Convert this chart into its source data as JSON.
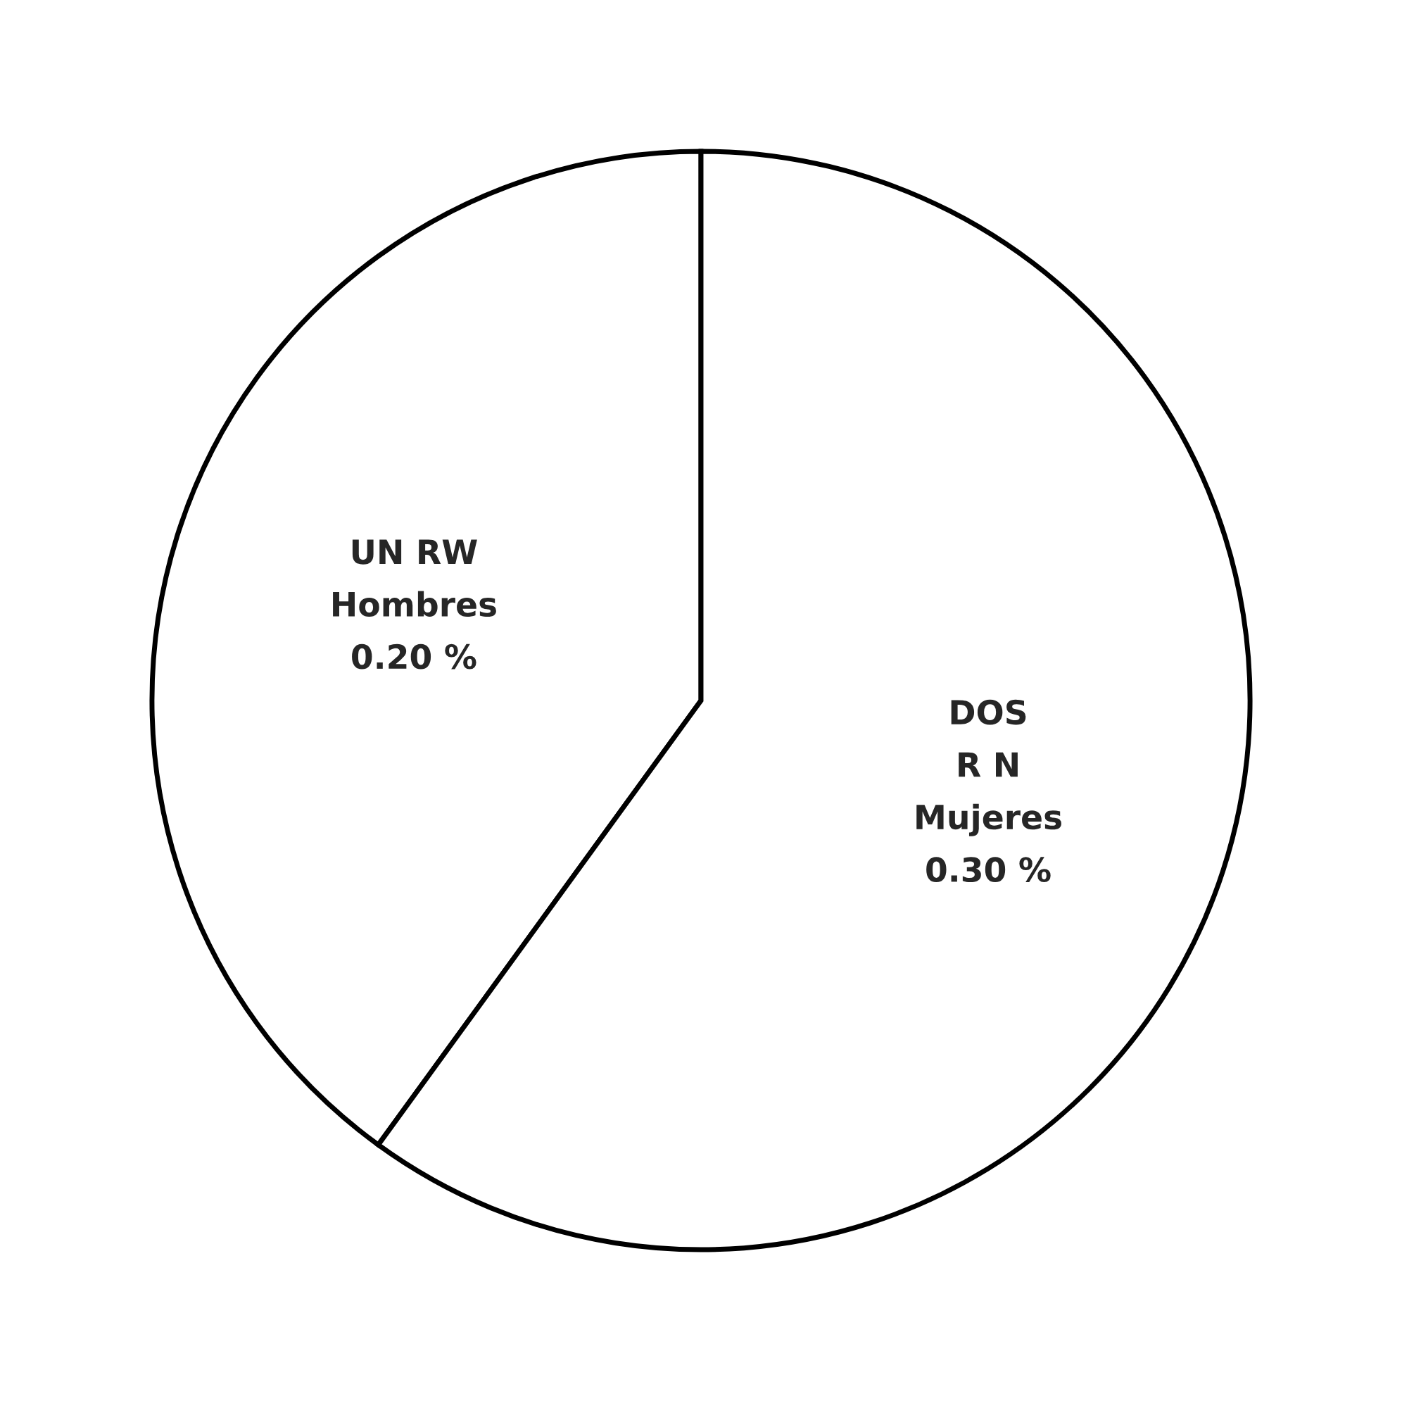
{
  "chart_data": {
    "type": "pie",
    "categories": [
      "UN RW\nHombres",
      "DOS\nR N\nMujeres"
    ],
    "values": [
      0.2,
      0.3
    ],
    "colors": [
      "#ffffff",
      "#ffffff"
    ],
    "value_labels": [
      "0.20 %",
      "0.30 %"
    ]
  }
}
